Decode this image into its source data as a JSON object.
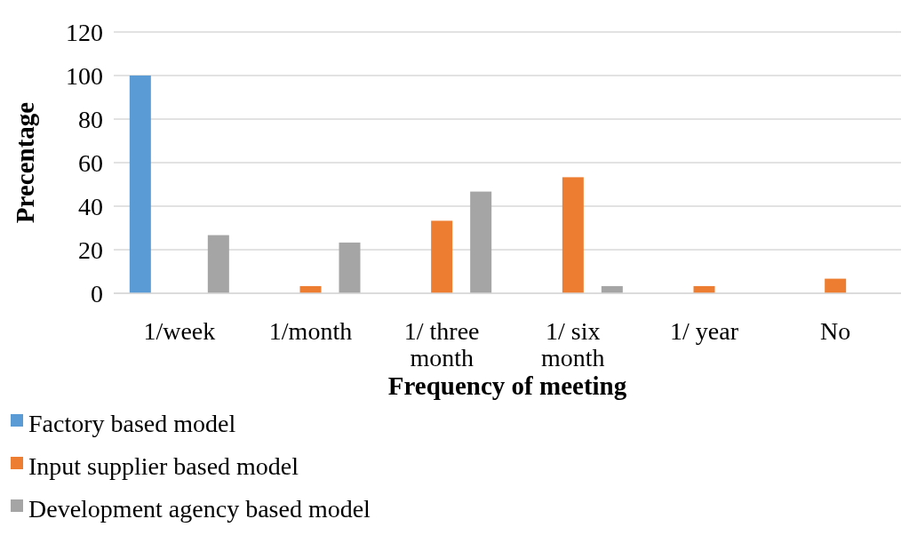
{
  "chart_data": {
    "type": "bar",
    "xlabel": "Frequency of meeting",
    "ylabel": "Precentage",
    "categories": [
      "1/week",
      "1/month",
      "1/ three month",
      "1/ six month",
      "1/ year",
      "No"
    ],
    "series": [
      {
        "name": "Factory based model",
        "color": "#5b9bd5",
        "values": [
          100,
          0,
          0,
          0,
          0,
          0
        ]
      },
      {
        "name": "Input supplier based model",
        "color": "#ed7d31",
        "values": [
          0,
          3.3,
          33.3,
          53.3,
          3.3,
          6.7
        ]
      },
      {
        "name": "Development agency based model",
        "color": "#a5a5a5",
        "values": [
          26.7,
          23.3,
          46.7,
          3.3,
          0,
          0
        ]
      }
    ],
    "ylim": [
      0,
      120
    ],
    "yticks": [
      0,
      20,
      40,
      60,
      80,
      100,
      120
    ],
    "grid": "y",
    "legend": "bottom"
  }
}
